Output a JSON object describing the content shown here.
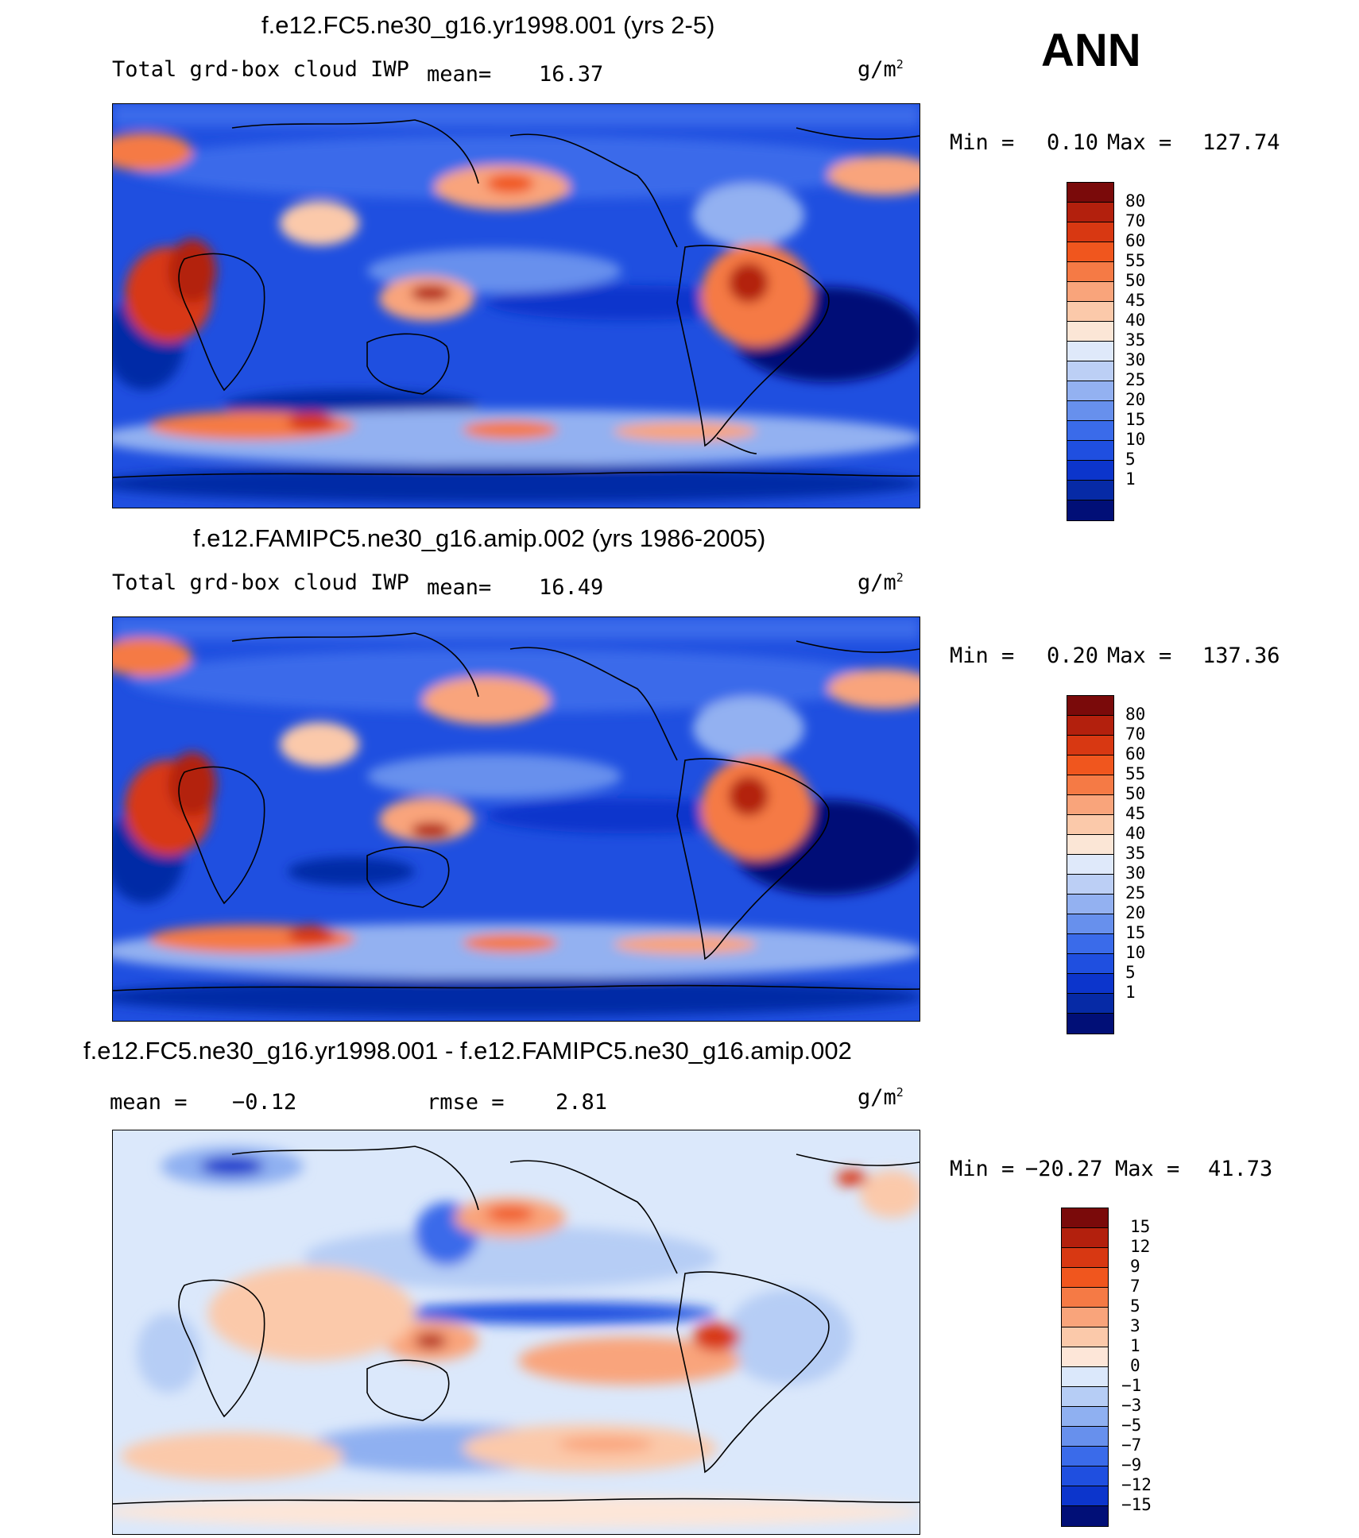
{
  "season": "ANN",
  "units_base": "g/m",
  "units_exp": "2",
  "panels": [
    {
      "title": "f.e12.FC5.ne30_g16.yr1998.001 (yrs 2-5)",
      "variable": "Total grd-box cloud IWP",
      "mean_label": "mean=",
      "mean_value": "16.37",
      "min_label": "Min =",
      "min_value": "0.10",
      "max_label": "Max =",
      "max_value": "127.74",
      "levels": [
        "80",
        "70",
        "60",
        "55",
        "50",
        "45",
        "40",
        "35",
        "30",
        "25",
        "20",
        "15",
        "10",
        "5",
        "1"
      ]
    },
    {
      "title": "f.e12.FAMIPC5.ne30_g16.amip.002 (yrs 1986-2005)",
      "variable": "Total grd-box cloud IWP",
      "mean_label": "mean=",
      "mean_value": "16.49",
      "min_label": "Min =",
      "min_value": "0.20",
      "max_label": "Max =",
      "max_value": "137.36",
      "levels": [
        "80",
        "70",
        "60",
        "55",
        "50",
        "45",
        "40",
        "35",
        "30",
        "25",
        "20",
        "15",
        "10",
        "5",
        "1"
      ]
    },
    {
      "title": "f.e12.FC5.ne30_g16.yr1998.001 - f.e12.FAMIPC5.ne30_g16.amip.002",
      "mean_label": "mean =",
      "mean_value": "−0.12",
      "rmse_label": "rmse =",
      "rmse_value": "2.81",
      "min_label": "Min =",
      "min_value": "−20.27",
      "max_label": "Max =",
      "max_value": "41.73",
      "levels": [
        "15",
        "12",
        "9",
        "7",
        "5",
        "3",
        "1",
        "0",
        "−1",
        "−3",
        "−5",
        "−7",
        "−9",
        "−12",
        "−15"
      ]
    }
  ],
  "colors": {
    "abs_scale": [
      "#7a0a0a",
      "#b3200d",
      "#d83812",
      "#f0561e",
      "#f57a45",
      "#f9a47b",
      "#fbc9aa",
      "#fbe6d6",
      "#dfe9fa",
      "#bccff5",
      "#93b1f1",
      "#6790ed",
      "#3a6bea",
      "#1f4fe0",
      "#0c35cc",
      "#062aa6",
      "#010f77"
    ],
    "diff_scale": [
      "#7a0a0a",
      "#b3200d",
      "#d83812",
      "#f0561e",
      "#f57a45",
      "#f9a47b",
      "#fbc9aa",
      "#fde6d8",
      "#dbe8fb",
      "#b6cdf5",
      "#8fb0f1",
      "#6790ed",
      "#3a6bea",
      "#1f4fe0",
      "#0c35cc",
      "#010f77"
    ]
  }
}
